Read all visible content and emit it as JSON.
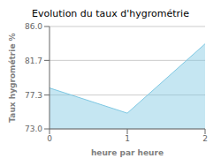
{
  "chart_data": {
    "type": "area",
    "title": "Evolution du taux d'hygrométrie",
    "xlabel": "heure par heure",
    "ylabel": "Taux hygrométrie %",
    "x": [
      0,
      1,
      2
    ],
    "values": [
      78.2,
      75.0,
      83.8
    ],
    "color": "#7ec8e3",
    "xlim": [
      0,
      2
    ],
    "ylim": [
      73.0,
      86.0
    ],
    "xticks": [
      0,
      1,
      2
    ],
    "yticks": [
      {
        "value": 73.0,
        "label": "73.0"
      },
      77.3,
      81.7,
      {
        "value": 86.0,
        "label": "86.0"
      }
    ],
    "grid": "y"
  }
}
